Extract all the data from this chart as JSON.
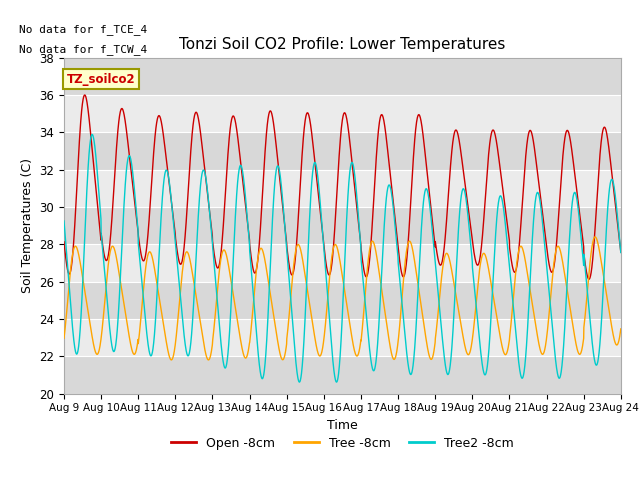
{
  "title": "Tonzi Soil CO2 Profile: Lower Temperatures",
  "ylabel": "Soil Temperatures (C)",
  "xlabel": "Time",
  "ylim": [
    20,
    38
  ],
  "xlim": [
    0,
    15
  ],
  "xtick_labels": [
    "Aug 9",
    "Aug 10",
    "Aug 11",
    "Aug 12",
    "Aug 13",
    "Aug 14",
    "Aug 15",
    "Aug 16",
    "Aug 17",
    "Aug 18",
    "Aug 19",
    "Aug 20",
    "Aug 21",
    "Aug 22",
    "Aug 23",
    "Aug 24"
  ],
  "annotation1": "No data for f_TCE_4",
  "annotation2": "No data for f_TCW_4",
  "box_label": "TZ_soilco2",
  "legend": [
    "Open -8cm",
    "Tree -8cm",
    "Tree2 -8cm"
  ],
  "colors": [
    "#cc0000",
    "#ffa500",
    "#00cccc"
  ],
  "background_color": "#e8e8e8",
  "band_colors": [
    "#d8d8d8",
    "#ebebeb"
  ],
  "open_mid": [
    31.2,
    31.2,
    31.0,
    31.0,
    30.8,
    30.8,
    30.7,
    30.7,
    30.6,
    30.6,
    30.5,
    30.5,
    30.3,
    30.3,
    30.2
  ],
  "open_amp": [
    5.3,
    4.5,
    4.3,
    4.5,
    4.5,
    4.8,
    4.8,
    4.8,
    4.8,
    4.8,
    4.0,
    4.0,
    4.2,
    4.2,
    4.5
  ],
  "open_phase": [
    0.35,
    0.35,
    0.35,
    0.35,
    0.35,
    0.35,
    0.35,
    0.35,
    0.35,
    0.35,
    0.35,
    0.35,
    0.35,
    0.35,
    0.35
  ],
  "tree_mid": [
    25.0,
    25.0,
    24.7,
    24.7,
    24.8,
    24.8,
    25.0,
    25.0,
    25.0,
    25.0,
    24.8,
    24.8,
    25.0,
    25.0,
    25.5
  ],
  "tree_amp": [
    3.2,
    3.2,
    3.2,
    3.2,
    3.2,
    3.3,
    3.3,
    3.3,
    3.5,
    3.5,
    3.0,
    3.0,
    3.2,
    3.2,
    3.2
  ],
  "tree_phase": [
    0.1,
    0.1,
    0.1,
    0.1,
    0.1,
    0.1,
    0.1,
    0.1,
    0.1,
    0.1,
    0.1,
    0.1,
    0.1,
    0.1,
    0.1
  ],
  "tree2_mid": [
    28.0,
    27.5,
    27.0,
    27.0,
    26.8,
    26.5,
    26.5,
    26.5,
    26.2,
    26.0,
    26.0,
    25.8,
    25.8,
    25.8,
    26.5
  ],
  "tree2_amp": [
    6.5,
    5.8,
    5.5,
    5.5,
    6.0,
    6.3,
    6.5,
    6.5,
    5.5,
    5.5,
    5.5,
    5.3,
    5.5,
    5.5,
    5.5
  ],
  "tree2_phase": [
    0.55,
    0.55,
    0.55,
    0.55,
    0.55,
    0.55,
    0.55,
    0.55,
    0.55,
    0.55,
    0.55,
    0.55,
    0.55,
    0.55,
    0.55
  ]
}
